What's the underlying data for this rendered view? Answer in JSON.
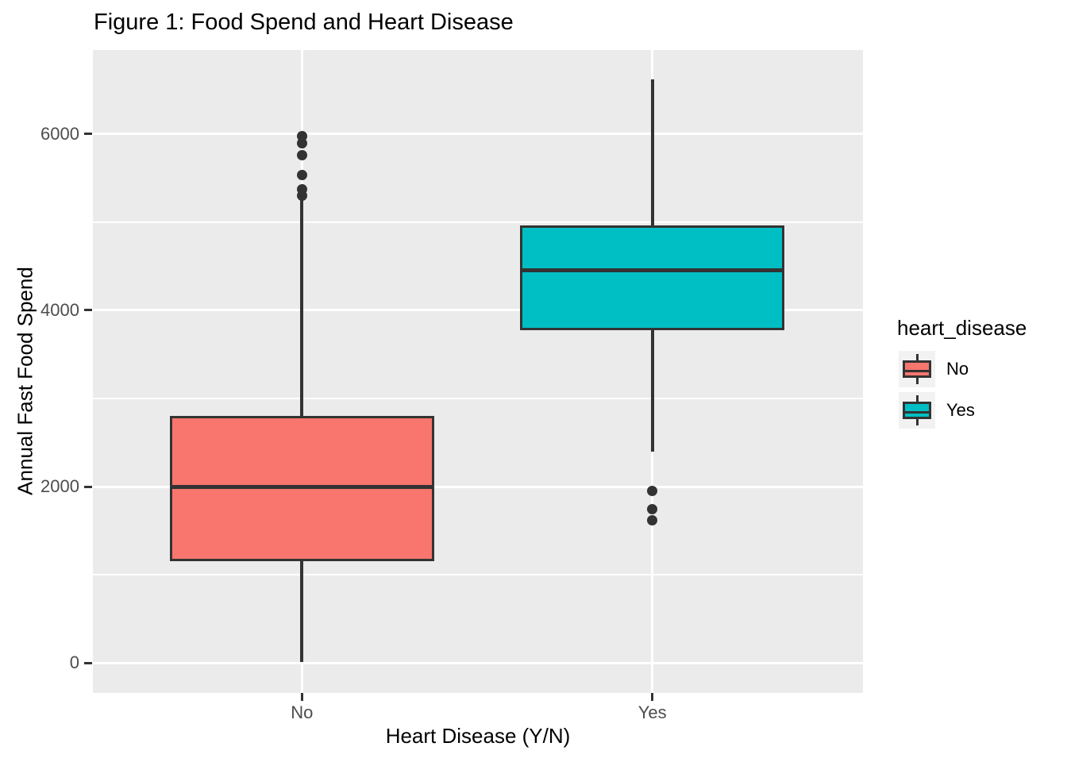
{
  "title": "Figure 1: Food Spend and Heart Disease",
  "axes": {
    "x_label": "Heart Disease (Y/N)",
    "y_label": "Annual Fast Food Spend",
    "x_tick_labels": [
      "No",
      "Yes"
    ],
    "y_tick_labels": [
      "0",
      "2000",
      "4000",
      "6000"
    ]
  },
  "legend": {
    "title": "heart_disease",
    "items": [
      {
        "label": "No",
        "color": "#F8766D"
      },
      {
        "label": "Yes",
        "color": "#00BFC4"
      }
    ]
  },
  "colors": {
    "panel_bg": "#EBEBEB",
    "gridline": "#FFFFFF",
    "box_border": "#333333",
    "tick_label": "#4D4D4D",
    "legend_key_bg": "#F2F2F2",
    "no_fill": "#F8766D",
    "yes_fill": "#00BFC4"
  },
  "chart_data": {
    "type": "boxplot",
    "title": "Figure 1: Food Spend and Heart Disease",
    "xlabel": "Heart Disease (Y/N)",
    "ylabel": "Annual Fast Food Spend",
    "categories": [
      "No",
      "Yes"
    ],
    "ylim": [
      -340,
      6950
    ],
    "y_major_ticks": [
      0,
      2000,
      4000,
      6000
    ],
    "y_minor_ticks": [
      1000,
      3000,
      5000
    ],
    "grid": true,
    "legend_title": "heart_disease",
    "legend_position": "right",
    "series": [
      {
        "name": "No",
        "fill": "#F8766D",
        "whisker_low": 10,
        "q1": 1150,
        "median": 2000,
        "q3": 2800,
        "whisker_high": 5270,
        "outliers": [
          5300,
          5370,
          5530,
          5760,
          5890,
          5970
        ]
      },
      {
        "name": "Yes",
        "fill": "#00BFC4",
        "whisker_low": 2400,
        "q1": 3770,
        "median": 4450,
        "q3": 4960,
        "whisker_high": 6620,
        "outliers": [
          1620,
          1740,
          1950
        ]
      }
    ]
  }
}
